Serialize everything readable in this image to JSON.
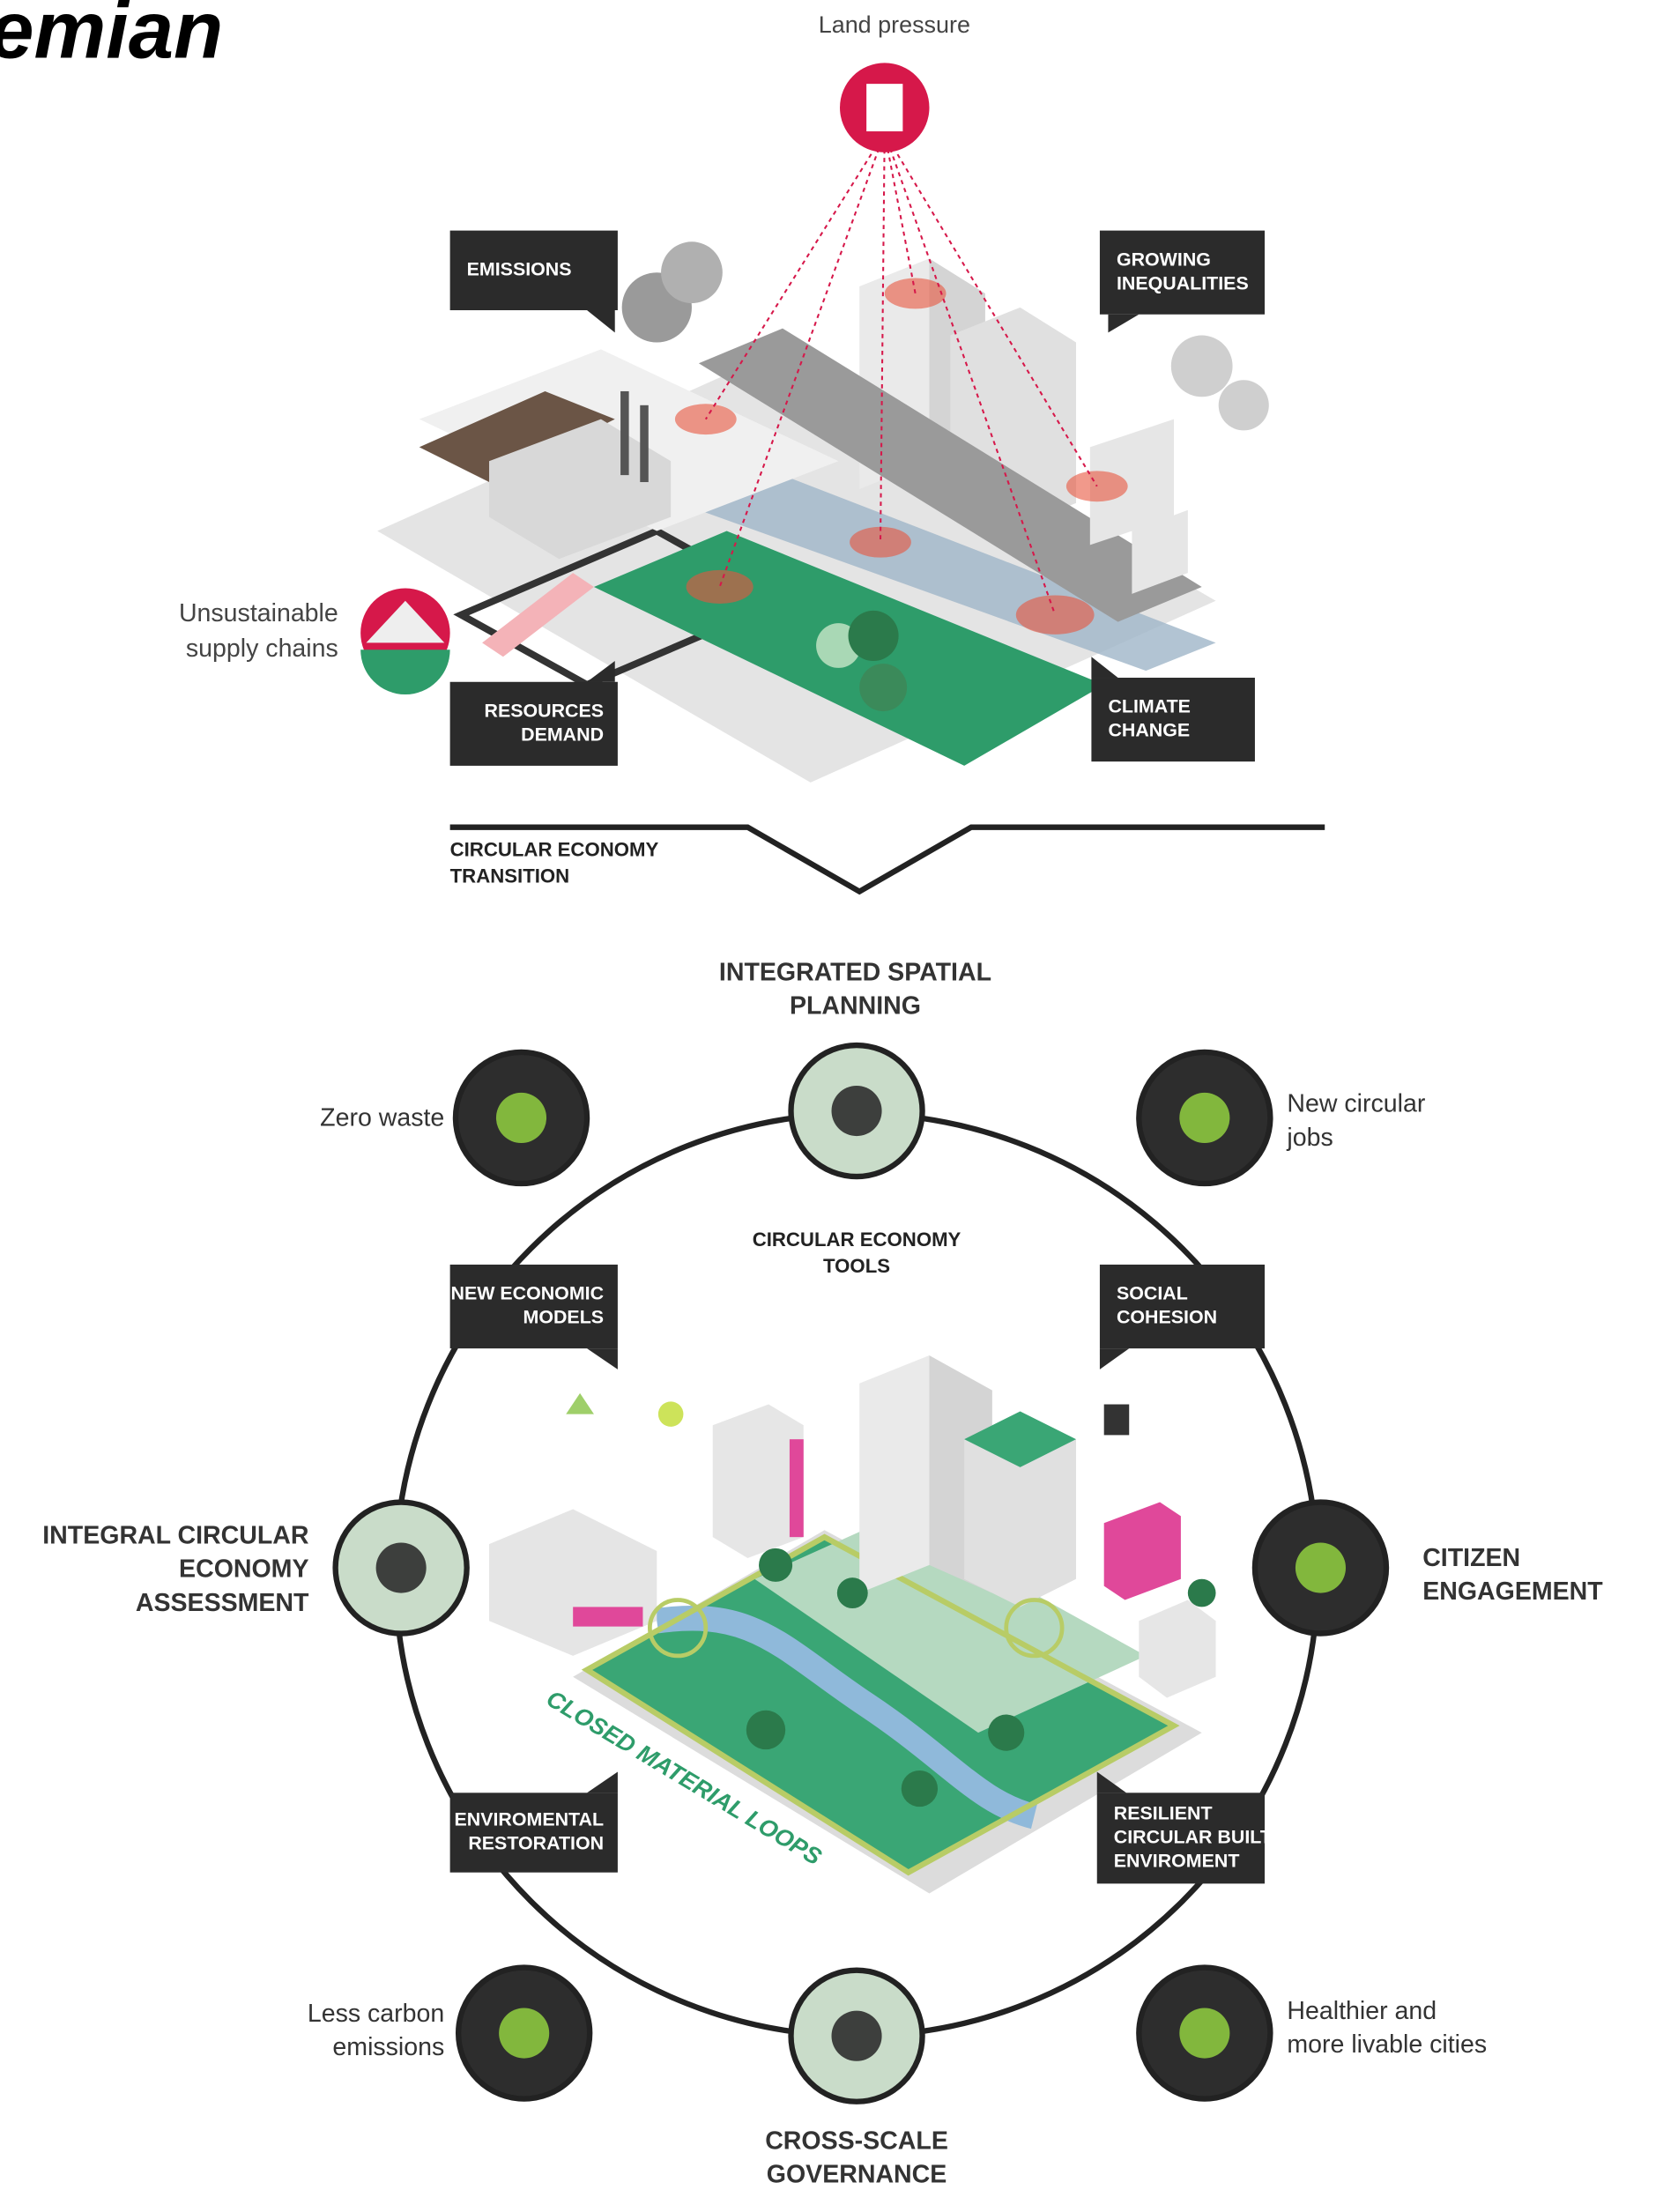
{
  "title": "emian",
  "problems": {
    "land_pressure": "Land pressure",
    "supply_chains": [
      "Unsustainable",
      "supply chains"
    ],
    "labels": [
      {
        "lines": [
          "EMISSIONS"
        ]
      },
      {
        "lines": [
          "GROWING",
          "INEQUALITIES"
        ]
      },
      {
        "lines": [
          "RESOURCES",
          "DEMAND"
        ]
      },
      {
        "lines": [
          "CLIMATE",
          "CHANGE"
        ]
      }
    ]
  },
  "transition": [
    "CIRCULAR ECONOMY",
    "TRANSITION"
  ],
  "solutions": {
    "center": [
      "CIRCULAR ECONOMY",
      "TOOLS"
    ],
    "loops": "CLOSED MATERIAL LOOPS",
    "pillars": [
      {
        "lines": [
          "INTEGRATED SPATIAL",
          "PLANNING"
        ]
      },
      {
        "lines": [
          "CITIZEN",
          "ENGAGEMENT"
        ]
      },
      {
        "lines": [
          "CROSS-SCALE",
          "GOVERNANCE"
        ]
      },
      {
        "lines": [
          "INTEGRAL CIRCULAR",
          "ECONOMY",
          "ASSESSMENT"
        ]
      }
    ],
    "benefits": [
      {
        "lines": [
          "Zero waste"
        ]
      },
      {
        "lines": [
          "New circular",
          "jobs"
        ]
      },
      {
        "lines": [
          "Less carbon",
          "emissions"
        ]
      },
      {
        "lines": [
          "Healthier and",
          "more livable cities"
        ]
      }
    ],
    "boxes": [
      {
        "lines": [
          "NEW ECONOMIC",
          "MODELS"
        ]
      },
      {
        "lines": [
          "SOCIAL",
          "COHESION"
        ]
      },
      {
        "lines": [
          "ENVIROMENTAL",
          "RESTORATION"
        ]
      },
      {
        "lines": [
          "RESILIENT",
          "CIRCULAR BUILT",
          "ENVIROMENT"
        ]
      }
    ]
  }
}
